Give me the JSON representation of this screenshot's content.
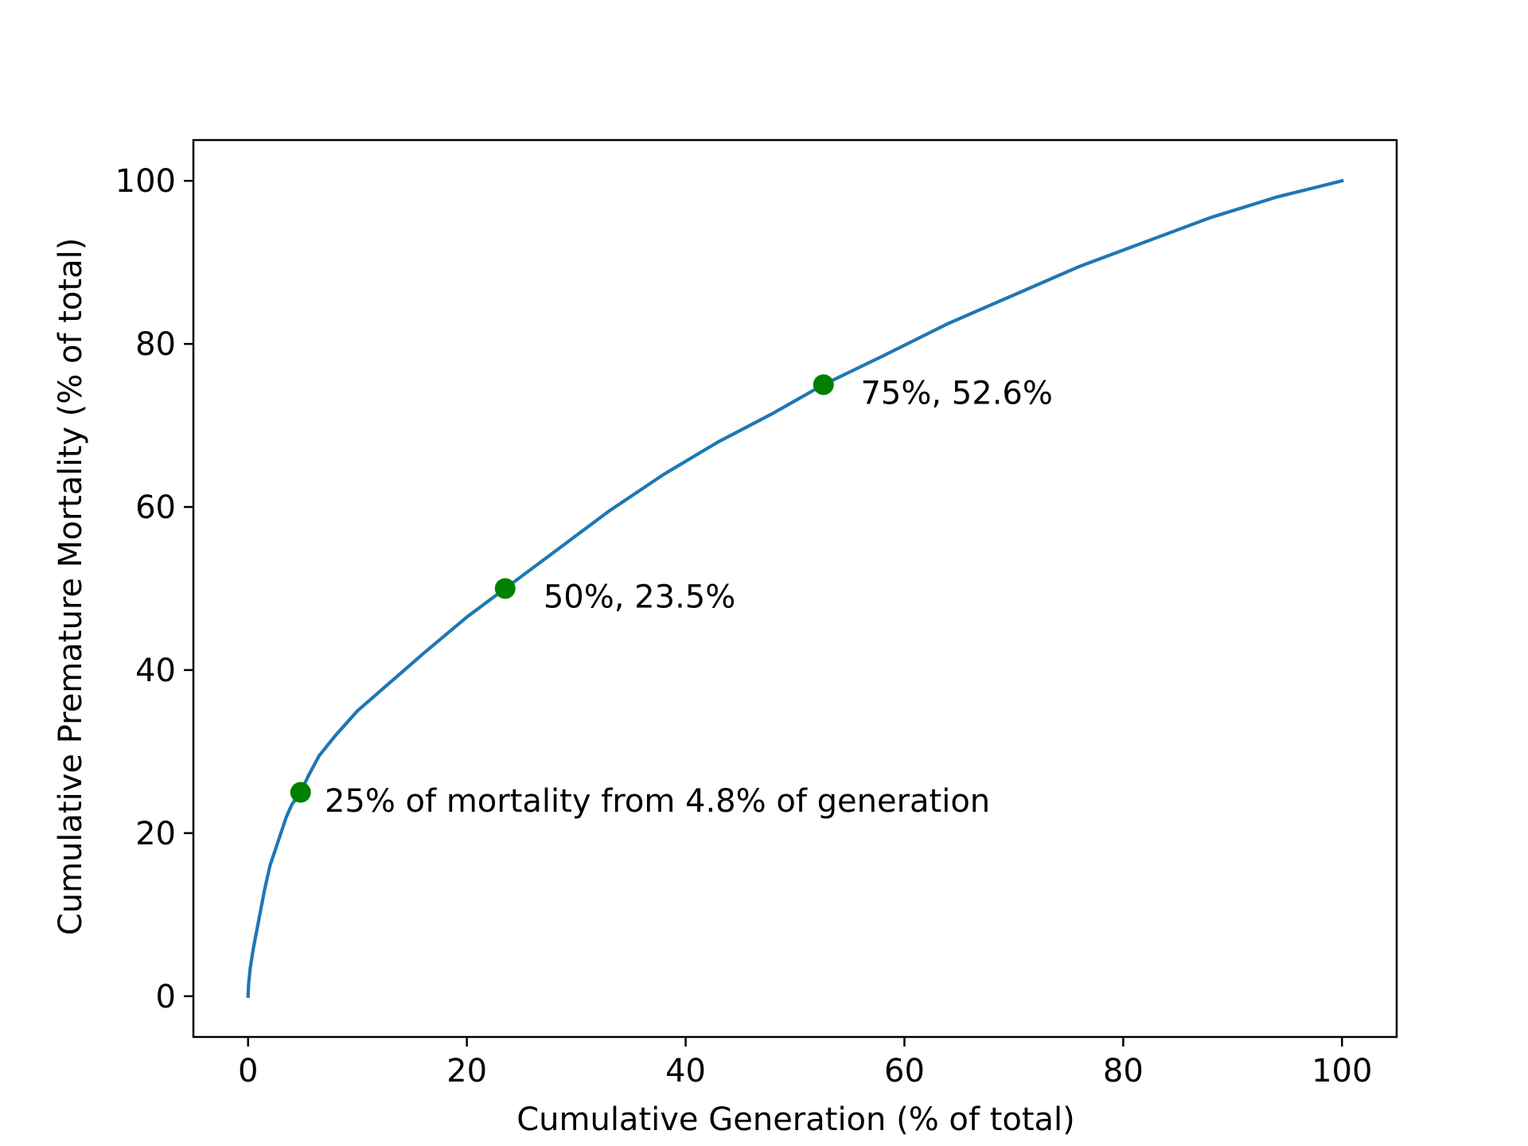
{
  "chart_data": {
    "type": "line",
    "title": "",
    "xlabel": "Cumulative Generation (% of total)",
    "ylabel": "Cumulative Premature Mortality (% of total)",
    "xlim": [
      -5,
      105
    ],
    "ylim": [
      -5,
      105
    ],
    "xticks": [
      0,
      20,
      40,
      60,
      80,
      100
    ],
    "yticks": [
      0,
      20,
      40,
      60,
      80,
      100
    ],
    "grid": false,
    "line_color": "#1f77b4",
    "marker_color": "#008000",
    "series": [
      {
        "x": [
          0,
          0.05,
          0.2,
          0.5,
          1.0,
          1.5,
          2.0,
          2.5,
          3.0,
          3.5,
          4.0,
          4.8,
          5.5,
          6.5,
          8.0,
          10.0,
          13.0,
          16.0,
          20.0,
          23.5,
          28.0,
          33.0,
          38.0,
          43.0,
          48.0,
          52.6,
          58.0,
          64.0,
          70.0,
          76.0,
          82.0,
          88.0,
          94.0,
          100.0
        ],
        "y": [
          0,
          1.5,
          3.5,
          6.0,
          9.5,
          13.0,
          16.0,
          18.0,
          20.0,
          22.0,
          23.5,
          25.0,
          27.0,
          29.5,
          32.0,
          35.0,
          38.5,
          42.0,
          46.5,
          50.0,
          54.5,
          59.5,
          64.0,
          68.0,
          71.5,
          75.0,
          78.5,
          82.5,
          86.0,
          89.5,
          92.5,
          95.5,
          98.0,
          100.0
        ]
      }
    ],
    "highlight_points": [
      {
        "x": 4.8,
        "y": 25
      },
      {
        "x": 23.5,
        "y": 50
      },
      {
        "x": 52.6,
        "y": 75
      }
    ],
    "annotations": [
      {
        "text": "25% of mortality from 4.8% of generation",
        "x": 7,
        "y": 24
      },
      {
        "text": "50%, 23.5%",
        "x": 27,
        "y": 49
      },
      {
        "text": "75%, 52.6%",
        "x": 56,
        "y": 74
      }
    ]
  }
}
